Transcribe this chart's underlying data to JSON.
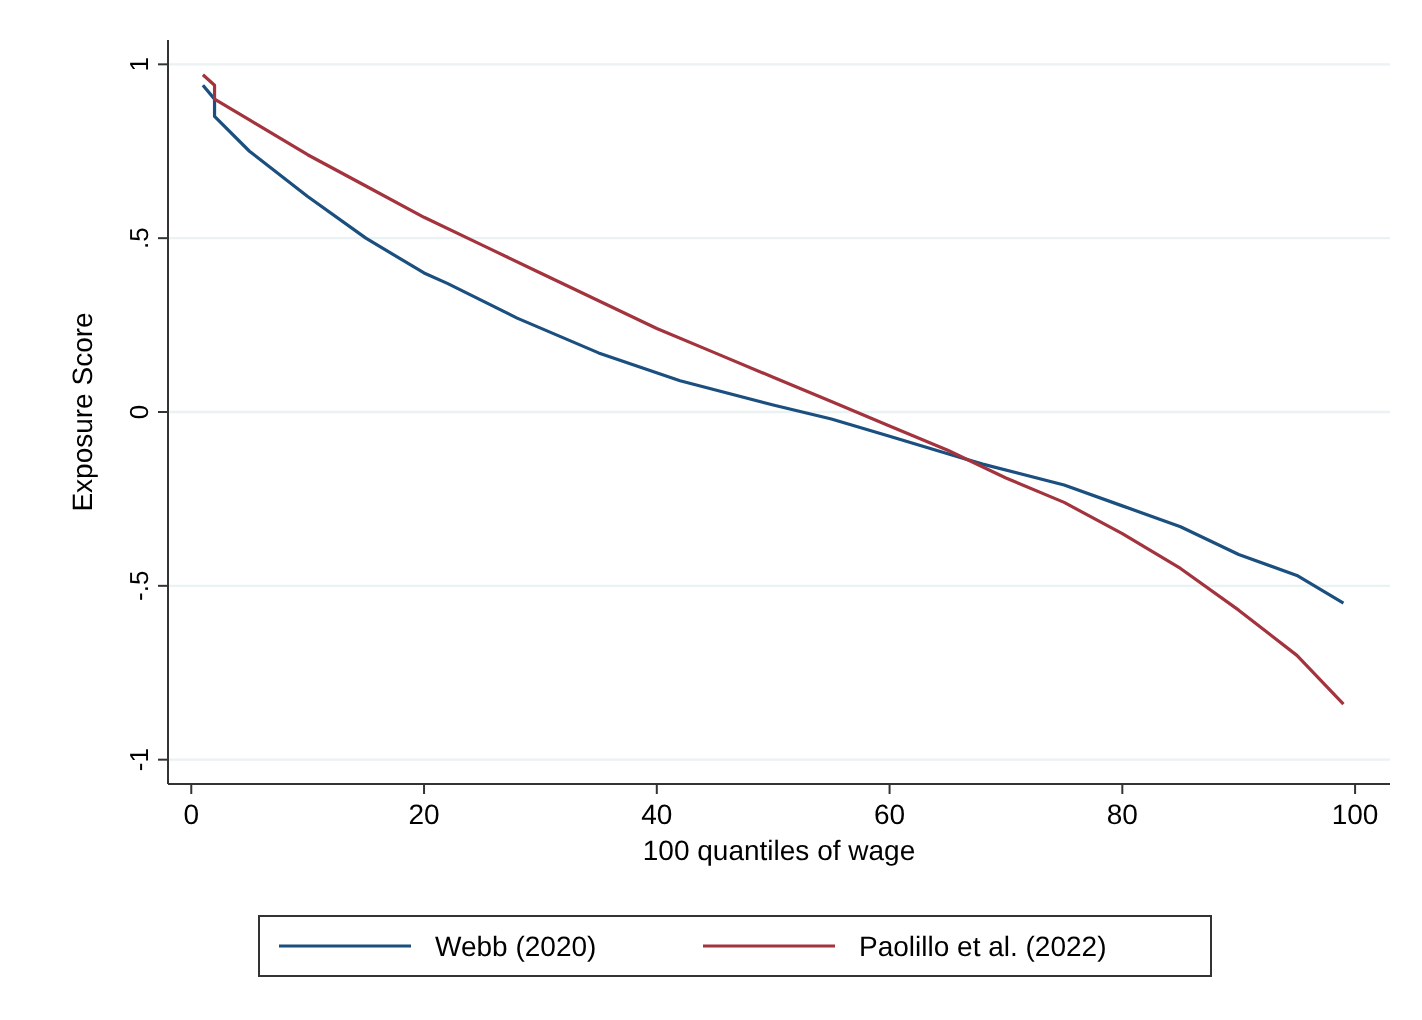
{
  "chart_data": {
    "type": "line",
    "xlabel": "100 quantiles of wage",
    "ylabel": "Exposure Score",
    "xlim": [
      -2,
      103
    ],
    "xticks": [
      0,
      20,
      40,
      60,
      80,
      100
    ],
    "ylim": [
      -1.07,
      1.07
    ],
    "yticks": [
      {
        "value": -1,
        "label": "-1"
      },
      {
        "value": -0.5,
        "label": "-.5"
      },
      0,
      {
        "value": 0.5,
        "label": ".5"
      },
      1
    ],
    "grid": "y",
    "legend": "bottom",
    "marker": "none",
    "line_style": "solid",
    "series": [
      {
        "name": "Webb (2020)",
        "color": "#1a4f7f",
        "x": [
          1,
          2,
          2,
          5,
          10,
          15,
          20,
          22,
          28,
          35,
          42,
          50,
          55,
          60,
          65,
          68,
          75,
          80,
          85,
          90,
          95,
          99
        ],
        "values": [
          0.94,
          0.9,
          0.85,
          0.75,
          0.62,
          0.5,
          0.4,
          0.37,
          0.27,
          0.17,
          0.09,
          0.02,
          -0.02,
          -0.07,
          -0.12,
          -0.15,
          -0.21,
          -0.27,
          -0.33,
          -0.41,
          -0.47,
          -0.55
        ]
      },
      {
        "name": "Paolillo et al. (2022)",
        "color": "#a3333d",
        "x": [
          1,
          2,
          2,
          5,
          10,
          15,
          20,
          25,
          30,
          35,
          40,
          45,
          50,
          55,
          60,
          65,
          70,
          75,
          80,
          85,
          90,
          95,
          99
        ],
        "values": [
          0.97,
          0.94,
          0.9,
          0.84,
          0.74,
          0.65,
          0.56,
          0.48,
          0.4,
          0.32,
          0.24,
          0.17,
          0.1,
          0.03,
          -0.04,
          -0.11,
          -0.19,
          -0.26,
          -0.35,
          -0.45,
          -0.57,
          -0.7,
          -0.84
        ]
      }
    ]
  }
}
